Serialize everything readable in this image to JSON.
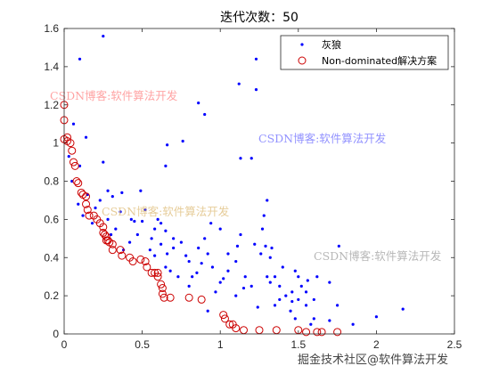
{
  "chart_data": {
    "type": "scatter",
    "title": "迭代次数：50",
    "xlabel": "",
    "ylabel": "",
    "xlim": [
      0,
      2.5
    ],
    "ylim": [
      0,
      1.6
    ],
    "x_ticks": [
      "0",
      "0.5",
      "1",
      "1.5",
      "2",
      "2.5"
    ],
    "y_ticks": [
      "0",
      "0.2",
      "0.4",
      "0.6",
      "0.8",
      "1",
      "1.2",
      "1.4",
      "1.6"
    ],
    "grid": false,
    "legend_position": "top-right",
    "series": [
      {
        "name": "灰狼",
        "marker": "dot",
        "color": "#0000ff",
        "points": [
          [
            0.25,
            1.56
          ],
          [
            1.23,
            1.44
          ],
          [
            0.1,
            1.44
          ],
          [
            1.12,
            1.31
          ],
          [
            1.23,
            1.28
          ],
          [
            0.86,
            1.21
          ],
          [
            0.9,
            1.15
          ],
          [
            0.06,
            1.1
          ],
          [
            0.14,
            1.03
          ],
          [
            0.66,
            0.99
          ],
          [
            0.76,
            1.01
          ],
          [
            0.65,
            0.88
          ],
          [
            0.25,
            0.9
          ],
          [
            0.1,
            0.88
          ],
          [
            1.13,
            0.92
          ],
          [
            1.2,
            0.92
          ],
          [
            0.03,
            0.93
          ],
          [
            0.28,
            0.75
          ],
          [
            0.37,
            0.74
          ],
          [
            0.49,
            0.75
          ],
          [
            0.52,
            0.65
          ],
          [
            0.45,
            0.59
          ],
          [
            0.62,
            0.58
          ],
          [
            0.31,
            0.72
          ],
          [
            0.23,
            0.7
          ],
          [
            0.2,
            0.66
          ],
          [
            0.36,
            0.64
          ],
          [
            0.28,
            0.6
          ],
          [
            0.5,
            0.59
          ],
          [
            0.65,
            0.54
          ],
          [
            0.62,
            0.47
          ],
          [
            0.55,
            0.44
          ],
          [
            0.42,
            0.48
          ],
          [
            0.47,
            0.52
          ],
          [
            0.58,
            0.41
          ],
          [
            0.7,
            0.45
          ],
          [
            0.75,
            0.48
          ],
          [
            0.78,
            0.41
          ],
          [
            0.9,
            0.5
          ],
          [
            0.94,
            0.58
          ],
          [
            0.86,
            0.45
          ],
          [
            0.73,
            0.3
          ],
          [
            0.68,
            0.33
          ],
          [
            0.85,
            0.32
          ],
          [
            0.95,
            0.35
          ],
          [
            1.02,
            0.29
          ],
          [
            1.11,
            0.46
          ],
          [
            1.13,
            0.52
          ],
          [
            1.22,
            0.47
          ],
          [
            1.29,
            0.46
          ],
          [
            1.26,
            0.42
          ],
          [
            1.32,
            0.4
          ],
          [
            1.1,
            0.38
          ],
          [
            1.05,
            0.42
          ],
          [
            1.0,
            0.27
          ],
          [
            1.16,
            0.3
          ],
          [
            1.32,
            0.27
          ],
          [
            1.38,
            0.25
          ],
          [
            1.38,
            0.18
          ],
          [
            1.42,
            0.2
          ],
          [
            1.46,
            0.22
          ],
          [
            1.52,
            0.25
          ],
          [
            1.5,
            0.18
          ],
          [
            1.45,
            0.12
          ],
          [
            1.55,
            0.15
          ],
          [
            1.6,
            0.18
          ],
          [
            1.48,
            0.08
          ],
          [
            1.6,
            0.08
          ],
          [
            1.7,
            0.07
          ],
          [
            1.75,
            0.15
          ],
          [
            1.85,
            0.05
          ],
          [
            2.0,
            0.09
          ],
          [
            2.17,
            0.13
          ],
          [
            1.76,
            0.46
          ],
          [
            1.48,
            0.33
          ],
          [
            1.5,
            0.3
          ],
          [
            1.56,
            0.28
          ],
          [
            1.62,
            0.3
          ],
          [
            1.3,
            0.3
          ],
          [
            1.35,
            0.15
          ],
          [
            1.4,
            0.35
          ],
          [
            1.15,
            0.24
          ],
          [
            1.1,
            0.2
          ],
          [
            1.2,
            0.25
          ],
          [
            1.24,
            0.14
          ],
          [
            0.97,
            0.22
          ],
          [
            0.92,
            0.12
          ],
          [
            1.28,
            0.62
          ],
          [
            1.3,
            0.7
          ],
          [
            1.27,
            0.55
          ],
          [
            1.33,
            0.45
          ],
          [
            1.35,
            0.3
          ],
          [
            0.58,
            0.55
          ],
          [
            0.6,
            0.6
          ],
          [
            0.38,
            0.44
          ],
          [
            0.3,
            0.52
          ],
          [
            0.33,
            0.55
          ],
          [
            0.43,
            0.6
          ],
          [
            0.56,
            0.5
          ],
          [
            0.66,
            0.42
          ],
          [
            0.7,
            0.5
          ],
          [
            0.8,
            0.38
          ],
          [
            0.82,
            0.3
          ],
          [
            0.88,
            0.37
          ],
          [
            0.92,
            0.42
          ],
          [
            1.0,
            0.55
          ],
          [
            1.05,
            0.33
          ],
          [
            0.8,
            0.25
          ],
          [
            0.65,
            0.35
          ],
          [
            0.12,
            0.62
          ],
          [
            0.18,
            0.58
          ],
          [
            0.09,
            0.68
          ],
          [
            0.15,
            0.73
          ],
          [
            0.05,
            0.8
          ],
          [
            1.7,
            0.27
          ],
          [
            1.58,
            0.05
          ],
          [
            1.46,
            0.17
          ],
          [
            1.55,
            0.22
          ]
        ]
      },
      {
        "name": "Non-dominated解决方案",
        "marker": "circle",
        "color": "#cc0000",
        "points": [
          [
            0.0,
            1.2
          ],
          [
            0.0,
            1.12
          ],
          [
            0.02,
            1.03
          ],
          [
            0.0,
            1.02
          ],
          [
            0.02,
            1.01
          ],
          [
            0.04,
            1.0
          ],
          [
            0.05,
            0.96
          ],
          [
            0.06,
            0.9
          ],
          [
            0.07,
            0.88
          ],
          [
            0.08,
            0.8
          ],
          [
            0.09,
            0.79
          ],
          [
            0.11,
            0.74
          ],
          [
            0.12,
            0.73
          ],
          [
            0.14,
            0.72
          ],
          [
            0.14,
            0.68
          ],
          [
            0.15,
            0.65
          ],
          [
            0.16,
            0.62
          ],
          [
            0.19,
            0.62
          ],
          [
            0.21,
            0.6
          ],
          [
            0.23,
            0.58
          ],
          [
            0.25,
            0.56
          ],
          [
            0.25,
            0.53
          ],
          [
            0.26,
            0.52
          ],
          [
            0.27,
            0.51
          ],
          [
            0.27,
            0.49
          ],
          [
            0.28,
            0.49
          ],
          [
            0.29,
            0.48
          ],
          [
            0.31,
            0.47
          ],
          [
            0.31,
            0.44
          ],
          [
            0.36,
            0.44
          ],
          [
            0.37,
            0.41
          ],
          [
            0.42,
            0.4
          ],
          [
            0.44,
            0.38
          ],
          [
            0.49,
            0.39
          ],
          [
            0.52,
            0.38
          ],
          [
            0.53,
            0.35
          ],
          [
            0.56,
            0.32
          ],
          [
            0.58,
            0.32
          ],
          [
            0.6,
            0.32
          ],
          [
            0.6,
            0.3
          ],
          [
            0.62,
            0.26
          ],
          [
            0.63,
            0.24
          ],
          [
            0.63,
            0.21
          ],
          [
            0.64,
            0.19
          ],
          [
            0.68,
            0.19
          ],
          [
            0.8,
            0.19
          ],
          [
            0.88,
            0.18
          ],
          [
            1.02,
            0.1
          ],
          [
            1.03,
            0.08
          ],
          [
            1.06,
            0.05
          ],
          [
            1.08,
            0.05
          ],
          [
            1.1,
            0.03
          ],
          [
            1.15,
            0.02
          ],
          [
            1.25,
            0.02
          ],
          [
            1.36,
            0.02
          ],
          [
            1.5,
            0.02
          ],
          [
            1.55,
            0.01
          ],
          [
            1.62,
            0.01
          ],
          [
            1.65,
            0.01
          ],
          [
            1.75,
            0.01
          ]
        ]
      }
    ]
  },
  "watermarks": [
    "CSDN博客:软件算法开发",
    "CSDN博客:软件算法开发",
    "CSDN博客:软件算法开发",
    "CSDN博客:软件算法开发"
  ],
  "footer": "掘金技术社区@软件算法开发"
}
